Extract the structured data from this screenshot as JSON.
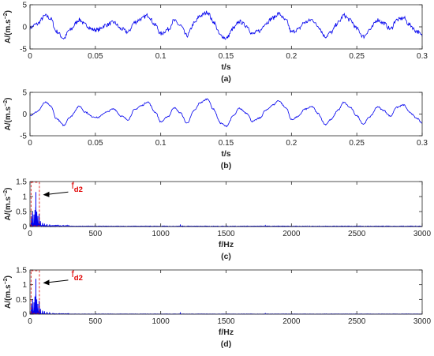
{
  "chart_data": [
    {
      "type": "line",
      "panel_label": "(a)",
      "xlabel": "t/s",
      "ylabel": "A/(m.s",
      "ylabel_sup": "−2",
      "xlim": [
        0,
        0.3
      ],
      "ylim": [
        -5,
        5
      ],
      "x_ticks": [
        0,
        0.05,
        0.1,
        0.15,
        0.2,
        0.25,
        0.3
      ],
      "x_tick_labels": [
        "0",
        "0.05",
        "0.1",
        "0.15",
        "0.2",
        "0.25",
        "0.3"
      ],
      "y_ticks": [
        -5,
        0,
        5
      ],
      "y_tick_labels": [
        "-5",
        "0",
        "5"
      ],
      "series": [
        {
          "color": "#0000ee",
          "noise": 0.45,
          "x": [
            0,
            0.005,
            0.012,
            0.016,
            0.02,
            0.026,
            0.03,
            0.038,
            0.042,
            0.048,
            0.052,
            0.058,
            0.064,
            0.07,
            0.075,
            0.08,
            0.085,
            0.09,
            0.096,
            0.1,
            0.106,
            0.11,
            0.115,
            0.12,
            0.126,
            0.13,
            0.136,
            0.14,
            0.146,
            0.15,
            0.156,
            0.16,
            0.166,
            0.17,
            0.176,
            0.18,
            0.186,
            0.19,
            0.196,
            0.2,
            0.205,
            0.21,
            0.216,
            0.22,
            0.226,
            0.23,
            0.236,
            0.24,
            0.245,
            0.25,
            0.255,
            0.26,
            0.266,
            0.27,
            0.276,
            0.28,
            0.286,
            0.29,
            0.296,
            0.3
          ],
          "y": [
            -0.2,
            0.6,
            2.5,
            1.8,
            -1.0,
            -2.6,
            -0.8,
            1.6,
            0.5,
            -0.6,
            -0.7,
            0.4,
            1.0,
            -0.5,
            -1.2,
            1.0,
            1.8,
            2.6,
            0.4,
            -1.6,
            -0.5,
            1.4,
            0.3,
            -2.0,
            0.9,
            2.5,
            3.3,
            1.2,
            -2.0,
            -2.6,
            -0.3,
            1.2,
            0.2,
            -1.6,
            -0.9,
            0.8,
            2.0,
            3.0,
            1.4,
            -1.2,
            -0.6,
            1.0,
            1.6,
            0.2,
            -2.2,
            -1.3,
            1.0,
            2.6,
            1.5,
            -0.4,
            -2.2,
            -0.6,
            1.6,
            0.9,
            -0.5,
            1.5,
            2.0,
            0.5,
            -1.0,
            -2.0
          ]
        }
      ]
    },
    {
      "type": "line",
      "panel_label": "(b)",
      "xlabel": "t/s",
      "ylabel": "A/(m.s",
      "ylabel_sup": "−2",
      "xlim": [
        0,
        0.3
      ],
      "ylim": [
        -5,
        5
      ],
      "x_ticks": [
        0,
        0.05,
        0.1,
        0.15,
        0.2,
        0.25,
        0.3
      ],
      "x_tick_labels": [
        "0",
        "0.05",
        "0.1",
        "0.15",
        "0.2",
        "0.25",
        "0.3"
      ],
      "y_ticks": [
        -5,
        0,
        5
      ],
      "y_tick_labels": [
        "-5",
        "0",
        "5"
      ],
      "series": [
        {
          "color": "#0000ee",
          "noise": 0.15,
          "x": [
            0,
            0.005,
            0.012,
            0.016,
            0.02,
            0.026,
            0.03,
            0.038,
            0.042,
            0.048,
            0.052,
            0.058,
            0.064,
            0.07,
            0.075,
            0.08,
            0.085,
            0.09,
            0.096,
            0.1,
            0.106,
            0.11,
            0.115,
            0.12,
            0.126,
            0.13,
            0.136,
            0.14,
            0.146,
            0.15,
            0.156,
            0.16,
            0.166,
            0.17,
            0.176,
            0.18,
            0.186,
            0.19,
            0.196,
            0.2,
            0.205,
            0.21,
            0.216,
            0.22,
            0.226,
            0.23,
            0.236,
            0.24,
            0.245,
            0.25,
            0.255,
            0.26,
            0.266,
            0.27,
            0.276,
            0.28,
            0.286,
            0.29,
            0.296,
            0.3
          ],
          "y": [
            -0.3,
            0.5,
            2.7,
            1.8,
            -1.0,
            -2.6,
            -0.8,
            1.8,
            0.5,
            -0.6,
            -0.8,
            0.4,
            1.2,
            -0.5,
            -1.3,
            1.0,
            1.9,
            2.8,
            0.4,
            -1.8,
            -0.5,
            1.5,
            0.3,
            -2.1,
            0.9,
            2.6,
            3.5,
            1.2,
            -2.1,
            -2.8,
            -0.3,
            1.3,
            0.2,
            -1.7,
            -0.9,
            0.8,
            2.1,
            3.1,
            1.4,
            -1.3,
            -0.6,
            1.1,
            1.7,
            0.2,
            -2.4,
            -1.3,
            1.0,
            2.7,
            1.5,
            -0.4,
            -2.3,
            -0.6,
            1.7,
            0.9,
            -0.5,
            1.5,
            2.1,
            0.5,
            -1.0,
            -2.1
          ]
        }
      ]
    },
    {
      "type": "line",
      "panel_label": "(c)",
      "xlabel": "f/Hz",
      "ylabel": "A/(m.s",
      "ylabel_sup": "−2",
      "xlim": [
        0,
        3000
      ],
      "ylim": [
        0,
        1.5
      ],
      "x_ticks": [
        0,
        500,
        1000,
        1500,
        2000,
        2500,
        3000
      ],
      "x_tick_labels": [
        "0",
        "500",
        "1000",
        "1500",
        "2000",
        "2500",
        "3000"
      ],
      "y_ticks": [
        0,
        0.5,
        1,
        1.5
      ],
      "y_tick_labels": [
        "0",
        "0.5",
        "1",
        "1.5"
      ],
      "annotation": {
        "label": "f",
        "label_sub": "d2",
        "color": "#e00000",
        "points_to_x": 45,
        "points_to_y": 1.1,
        "box_x": [
          8,
          72
        ]
      },
      "series": [
        {
          "color": "#0000ee",
          "peaks": [
            [
              10,
              0.35
            ],
            [
              20,
              0.5
            ],
            [
              30,
              0.4
            ],
            [
              38,
              0.55
            ],
            [
              45,
              1.15
            ],
            [
              52,
              0.5
            ],
            [
              60,
              0.35
            ],
            [
              70,
              0.42
            ],
            [
              80,
              0.18
            ],
            [
              95,
              0.12
            ],
            [
              110,
              0.1
            ],
            [
              130,
              0.08
            ],
            [
              150,
              0.07
            ],
            [
              175,
              0.05
            ],
            [
              1150,
              0.07
            ],
            [
              1800,
              0.04
            ]
          ],
          "floor": 0.02
        }
      ]
    },
    {
      "type": "line",
      "panel_label": "(d)",
      "xlabel": "f/Hz",
      "ylabel": "A/(m.s",
      "ylabel_sup": "−2",
      "xlim": [
        0,
        3000
      ],
      "ylim": [
        0,
        1.5
      ],
      "x_ticks": [
        0,
        500,
        1000,
        1500,
        2000,
        2500,
        3000
      ],
      "x_tick_labels": [
        "0",
        "500",
        "1000",
        "1500",
        "2000",
        "2500",
        "3000"
      ],
      "y_ticks": [
        0,
        0.5,
        1,
        1.5
      ],
      "y_tick_labels": [
        "0",
        "0.5",
        "1",
        "1.5"
      ],
      "annotation": {
        "label": "f",
        "label_sub": "d2",
        "color": "#e00000",
        "points_to_x": 45,
        "points_to_y": 1.1,
        "box_x": [
          8,
          72
        ]
      },
      "series": [
        {
          "color": "#0000ee",
          "peaks": [
            [
              10,
              0.35
            ],
            [
              20,
              0.5
            ],
            [
              30,
              0.4
            ],
            [
              38,
              0.6
            ],
            [
              45,
              1.2
            ],
            [
              52,
              0.5
            ],
            [
              60,
              0.35
            ],
            [
              70,
              0.45
            ],
            [
              80,
              0.18
            ],
            [
              95,
              0.12
            ],
            [
              110,
              0.1
            ],
            [
              130,
              0.08
            ],
            [
              150,
              0.06
            ],
            [
              175,
              0.04
            ],
            [
              1150,
              0.06
            ],
            [
              1800,
              0.03
            ]
          ],
          "floor": 0.01
        }
      ]
    }
  ]
}
